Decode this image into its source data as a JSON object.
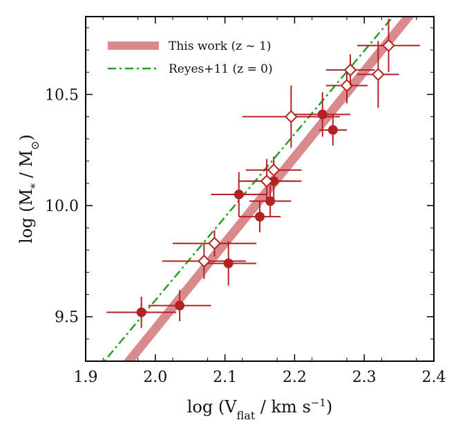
{
  "chart_data": {
    "type": "scatter",
    "xlabel": "log (V_flat / km s^-1)",
    "ylabel": "log (M_* / M_sun)",
    "xlim": [
      1.9,
      2.4
    ],
    "ylim": [
      9.3,
      10.85
    ],
    "xticks": [
      "1.9",
      "2.0",
      "2.1",
      "2.2",
      "2.3",
      "2.4"
    ],
    "yticks": [
      "9.5",
      "10.0",
      "10.5"
    ],
    "legend_position": "top-left",
    "colors": {
      "points": "#b22222",
      "fit_band": "#d88a8c",
      "reyes_line": "#22a022",
      "frame": "#000000"
    },
    "lines": [
      {
        "name": "This work (z ~ 1)",
        "style": "thick-band",
        "x": [
          1.9,
          2.4
        ],
        "y": [
          9.06,
          10.99
        ]
      },
      {
        "name": "Reyes+11 (z = 0)",
        "style": "dash-dot",
        "x": [
          1.9,
          2.4
        ],
        "y": [
          9.2,
          11.07
        ]
      }
    ],
    "series": [
      {
        "marker": "filled-circle",
        "points": [
          {
            "x": 1.98,
            "y": 9.52,
            "xerr": 0.05,
            "yerr": 0.07
          },
          {
            "x": 2.035,
            "y": 9.55,
            "xerr": 0.045,
            "yerr": 0.07
          },
          {
            "x": 2.105,
            "y": 9.74,
            "xerr": 0.04,
            "yerr": 0.1
          },
          {
            "x": 2.12,
            "y": 10.05,
            "xerr": 0.04,
            "yerr": 0.1
          },
          {
            "x": 2.15,
            "y": 9.95,
            "xerr": 0.03,
            "yerr": 0.07
          },
          {
            "x": 2.165,
            "y": 10.02,
            "xerr": 0.03,
            "yerr": 0.07
          },
          {
            "x": 2.17,
            "y": 10.11,
            "xerr": 0.04,
            "yerr": 0.09
          },
          {
            "x": 2.24,
            "y": 10.41,
            "xerr": 0.04,
            "yerr": 0.1
          },
          {
            "x": 2.255,
            "y": 10.34,
            "xerr": 0.02,
            "yerr": 0.07
          }
        ]
      },
      {
        "marker": "open-diamond",
        "points": [
          {
            "x": 2.07,
            "y": 9.75,
            "xerr": 0.06,
            "yerr": 0.08
          },
          {
            "x": 2.085,
            "y": 9.83,
            "xerr": 0.06,
            "yerr": 0.06
          },
          {
            "x": 2.16,
            "y": 10.11,
            "xerr": 0.04,
            "yerr": 0.1
          },
          {
            "x": 2.17,
            "y": 10.16,
            "xerr": 0.04,
            "yerr": 0.06
          },
          {
            "x": 2.195,
            "y": 10.4,
            "xerr": 0.07,
            "yerr": 0.14
          },
          {
            "x": 2.275,
            "y": 10.54,
            "xerr": 0.03,
            "yerr": 0.08
          },
          {
            "x": 2.28,
            "y": 10.61,
            "xerr": 0.035,
            "yerr": 0.07
          },
          {
            "x": 2.32,
            "y": 10.59,
            "xerr": 0.03,
            "yerr": 0.15
          },
          {
            "x": 2.335,
            "y": 10.72,
            "xerr": 0.045,
            "yerr": 0.12
          }
        ]
      }
    ]
  }
}
